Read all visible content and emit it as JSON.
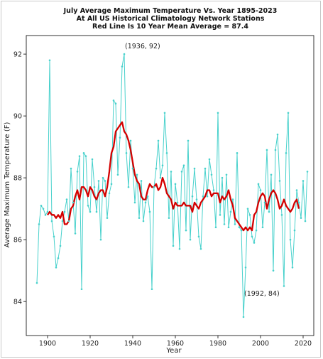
{
  "chart_data": {
    "type": "line",
    "title_lines": [
      "July Average Maximum Temperature Vs. Year 1895-2023",
      "At All US Historical Climatology Network Stations",
      "Red Line Is 10 Year Mean  Average = 87.4"
    ],
    "xlabel": "Year",
    "ylabel": "Average Maximum Temperature (F)",
    "xlim": [
      1890,
      2025
    ],
    "ylim": [
      82.9,
      92.6
    ],
    "xticks": [
      1900,
      1920,
      1940,
      1960,
      1980,
      2000,
      2020
    ],
    "yticks": [
      84,
      86,
      88,
      90,
      92
    ],
    "grid": false,
    "colors": {
      "annual": "#48d1cc",
      "mean": "#d40000"
    },
    "series": [
      {
        "x": [
          1895,
          1896,
          1897,
          1898,
          1899,
          1900,
          1901,
          1902,
          1903,
          1904,
          1905,
          1906,
          1907,
          1908,
          1909,
          1910,
          1911,
          1912,
          1913,
          1914,
          1915,
          1916,
          1917,
          1918,
          1919,
          1920,
          1921,
          1922,
          1923,
          1924,
          1925,
          1926,
          1927,
          1928,
          1929,
          1930,
          1931,
          1932,
          1933,
          1934,
          1935,
          1936,
          1937,
          1938,
          1939,
          1940,
          1941,
          1942,
          1943,
          1944,
          1945,
          1946,
          1947,
          1948,
          1949,
          1950,
          1951,
          1952,
          1953,
          1954,
          1955,
          1956,
          1957,
          1958,
          1959,
          1960,
          1961,
          1962,
          1963,
          1964,
          1965,
          1966,
          1967,
          1968,
          1969,
          1970,
          1971,
          1972,
          1973,
          1974,
          1975,
          1976,
          1977,
          1978,
          1979,
          1980,
          1981,
          1982,
          1983,
          1984,
          1985,
          1986,
          1987,
          1988,
          1989,
          1990,
          1991,
          1992,
          1993,
          1994,
          1995,
          1996,
          1997,
          1998,
          1999,
          2000,
          2001,
          2002,
          2003,
          2004,
          2005,
          2006,
          2007,
          2008,
          2009,
          2010,
          2011,
          2012,
          2013,
          2014,
          2015,
          2016,
          2017,
          2018,
          2019,
          2020,
          2021,
          2022
        ],
        "values": [
          84.6,
          86.5,
          87.1,
          87.0,
          86.8,
          86.9,
          91.8,
          86.6,
          86.1,
          85.1,
          85.4,
          85.8,
          86.6,
          86.9,
          87.3,
          86.6,
          88.3,
          87.2,
          86.2,
          88.2,
          88.7,
          84.4,
          88.8,
          88.7,
          87.1,
          86.9,
          88.6,
          87.7,
          86.9,
          87.9,
          86.0,
          88.0,
          87.9,
          86.7,
          87.5,
          87.8,
          90.5,
          90.4,
          88.1,
          89.3,
          91.6,
          92.0,
          88.8,
          87.7,
          89.2,
          88.3,
          87.2,
          88.1,
          86.7,
          87.9,
          86.6,
          87.2,
          87.4,
          86.9,
          84.4,
          87.7,
          88.3,
          89.2,
          88.0,
          88.4,
          90.1,
          88.8,
          86.7,
          88.2,
          85.8,
          87.8,
          87.2,
          85.7,
          88.2,
          88.4,
          86.3,
          89.2,
          86.0,
          87.4,
          88.3,
          87.3,
          86.1,
          85.7,
          87.4,
          88.3,
          87.4,
          88.6,
          88.1,
          87.6,
          86.4,
          90.1,
          86.8,
          88.0,
          86.5,
          88.1,
          86.4,
          86.9,
          87.3,
          86.5,
          88.8,
          86.4,
          86.3,
          83.5,
          85.1,
          87.0,
          86.8,
          86.1,
          85.9,
          86.3,
          87.8,
          87.6,
          86.4,
          87.2,
          88.9,
          86.9,
          88.1,
          85.0,
          88.9,
          89.4,
          87.9,
          86.8,
          84.5,
          88.8,
          90.1,
          86.0,
          85.1,
          86.3,
          87.6,
          87.2,
          86.7,
          87.9,
          86.6,
          88.2
        ]
      },
      {
        "x": [
          1900,
          1901,
          1902,
          1903,
          1904,
          1905,
          1906,
          1907,
          1908,
          1909,
          1910,
          1911,
          1912,
          1913,
          1914,
          1915,
          1916,
          1917,
          1918,
          1919,
          1920,
          1921,
          1922,
          1923,
          1924,
          1925,
          1926,
          1927,
          1928,
          1929,
          1930,
          1931,
          1932,
          1933,
          1934,
          1935,
          1936,
          1937,
          1938,
          1939,
          1940,
          1941,
          1942,
          1943,
          1944,
          1945,
          1946,
          1947,
          1948,
          1949,
          1950,
          1951,
          1952,
          1953,
          1954,
          1955,
          1956,
          1957,
          1958,
          1959,
          1960,
          1961,
          1962,
          1963,
          1964,
          1965,
          1966,
          1967,
          1968,
          1969,
          1970,
          1971,
          1972,
          1973,
          1974,
          1975,
          1976,
          1977,
          1978,
          1979,
          1980,
          1981,
          1982,
          1983,
          1984,
          1985,
          1986,
          1987,
          1988,
          1989,
          1990,
          1991,
          1992,
          1993,
          1994,
          1995,
          1996,
          1997,
          1998,
          1999,
          2000,
          2001,
          2002,
          2003,
          2004,
          2005,
          2006,
          2007,
          2008,
          2009,
          2010,
          2011,
          2012,
          2013,
          2014,
          2015,
          2016,
          2017,
          2018
        ],
        "values": [
          86.8,
          86.9,
          86.8,
          86.8,
          86.7,
          86.8,
          86.7,
          86.9,
          86.5,
          86.5,
          86.6,
          87.0,
          87.1,
          87.4,
          87.6,
          87.3,
          87.7,
          87.7,
          87.6,
          87.4,
          87.7,
          87.6,
          87.4,
          87.3,
          87.5,
          87.6,
          87.6,
          87.4,
          87.7,
          88.2,
          88.8,
          89.0,
          89.5,
          89.6,
          89.7,
          89.8,
          89.5,
          89.4,
          89.2,
          88.9,
          88.5,
          88.1,
          87.9,
          87.8,
          87.4,
          87.3,
          87.3,
          87.6,
          87.8,
          87.7,
          87.7,
          87.8,
          87.6,
          87.7,
          88.0,
          87.8,
          87.5,
          87.4,
          87.3,
          87.0,
          87.2,
          87.1,
          87.1,
          87.1,
          87.2,
          87.1,
          87.1,
          87.1,
          86.9,
          87.2,
          87.1,
          87.0,
          87.2,
          87.3,
          87.4,
          87.6,
          87.6,
          87.4,
          87.5,
          87.5,
          87.5,
          87.2,
          87.4,
          87.3,
          87.4,
          87.6,
          87.3,
          87.1,
          86.7,
          86.6,
          86.5,
          86.4,
          86.3,
          86.4,
          86.3,
          86.4,
          86.3,
          86.8,
          86.9,
          87.2,
          87.4,
          87.5,
          87.4,
          87.0,
          87.3,
          87.5,
          87.6,
          87.5,
          87.3,
          87.0,
          87.1,
          87.3,
          87.1,
          87.0,
          86.9,
          87.0,
          87.2,
          87.3,
          87.0
        ]
      }
    ],
    "annotations": [
      {
        "text": "(1936, 92)",
        "x": 1936,
        "y": 92
      },
      {
        "text": "(1992, 84)",
        "x": 1992,
        "y": 84
      }
    ]
  }
}
